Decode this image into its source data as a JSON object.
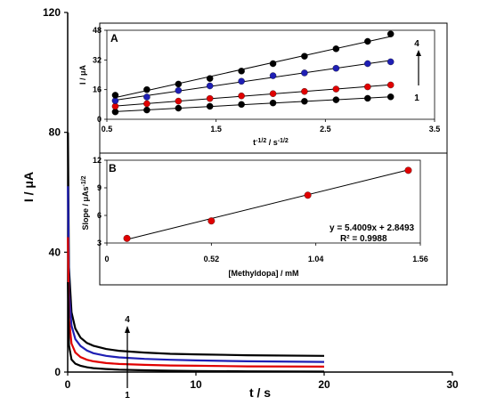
{
  "chart_data": [
    {
      "id": "main",
      "type": "line",
      "xlabel": "t / s",
      "ylabel": "I / μA",
      "xlim": [
        0,
        30
      ],
      "ylim": [
        0,
        120
      ],
      "xticks": [
        "0",
        "10",
        "20",
        "30"
      ],
      "yticks": [
        "0",
        "40",
        "80",
        "120"
      ],
      "series": [
        {
          "color": "#000000",
          "x": [
            0.02,
            0.1,
            0.3,
            0.6,
            1,
            1.5,
            2,
            3,
            4,
            6,
            8,
            10,
            14,
            20
          ],
          "y": [
            80,
            35,
            20,
            14.5,
            11.5,
            9.7,
            8.8,
            7.7,
            7.1,
            6.5,
            6.1,
            5.9,
            5.6,
            5.4
          ]
        },
        {
          "color": "#1f1fb4",
          "x": [
            0.02,
            0.1,
            0.3,
            0.6,
            1,
            1.5,
            2,
            3,
            4,
            6,
            8,
            10,
            14,
            20
          ],
          "y": [
            62,
            27,
            15.5,
            11,
            8.7,
            7.2,
            6.3,
            5.4,
            4.9,
            4.4,
            4.1,
            3.9,
            3.6,
            3.4
          ]
        },
        {
          "color": "#e00000",
          "x": [
            0.02,
            0.1,
            0.3,
            0.6,
            1,
            1.5,
            2,
            3,
            4,
            6,
            8,
            10,
            14,
            20
          ],
          "y": [
            45,
            18,
            9.5,
            6.5,
            5,
            4.1,
            3.6,
            3,
            2.7,
            2.4,
            2.2,
            2.1,
            1.9,
            1.8
          ]
        },
        {
          "color": "#000000",
          "x": [
            0.02,
            0.1,
            0.3,
            0.6,
            1,
            1.5,
            2,
            3,
            4,
            6,
            8,
            10,
            14,
            20
          ],
          "y": [
            30,
            9,
            4.2,
            2.8,
            2.1,
            1.6,
            1.3,
            1,
            0.8,
            0.6,
            0.45,
            0.35,
            0.25,
            0.15
          ]
        }
      ],
      "annotations": {
        "top": "4",
        "bottom": "1"
      }
    },
    {
      "id": "A",
      "panel_label": "A",
      "type": "scatter",
      "xlabel_main": "t",
      "xlabel_sup1": "-1/2",
      "xlabel_mid": " / s",
      "xlabel_sup2": "-1/2",
      "ylabel": "I / μA",
      "xlim": [
        0.5,
        3.5
      ],
      "ylim": [
        0,
        48
      ],
      "xticks": [
        "0.5",
        "1.5",
        "2.5",
        "3.5"
      ],
      "yticks": [
        "0",
        "16",
        "32",
        "48"
      ],
      "x": [
        0.577,
        0.866,
        1.155,
        1.443,
        1.732,
        2.021,
        2.309,
        2.598,
        2.887,
        3.098
      ],
      "series": [
        {
          "color": "#000000",
          "values": [
            4,
            5,
            6,
            7,
            8,
            8.8,
            9.7,
            10.5,
            11.3,
            12.1
          ]
        },
        {
          "color": "#e00000",
          "values": [
            7,
            8.4,
            9.8,
            11.2,
            12.6,
            13.8,
            15,
            16.3,
            17.5,
            18.5
          ]
        },
        {
          "color": "#1f1fb4",
          "values": [
            10,
            12,
            15.5,
            18,
            20.5,
            23.5,
            25,
            27.5,
            30,
            31
          ]
        },
        {
          "color": "#000000",
          "values": [
            13,
            16,
            19,
            22,
            26,
            30,
            34,
            38,
            42,
            46
          ]
        }
      ],
      "annotations": {
        "top": "4",
        "bottom": "1"
      }
    },
    {
      "id": "B",
      "panel_label": "B",
      "type": "scatter",
      "xlabel": "[Methyldopa] / mM",
      "ylabel_main": "Slope / μAs",
      "ylabel_sup": "-1/2",
      "xlim": [
        0,
        1.56
      ],
      "ylim": [
        3,
        12
      ],
      "xticks": [
        "0",
        "0.52",
        "1.04",
        "1.56"
      ],
      "yticks": [
        "3",
        "6",
        "9",
        "12"
      ],
      "x": [
        0.1,
        0.52,
        1.0,
        1.5
      ],
      "values": [
        3.5,
        5.4,
        8.2,
        10.9
      ],
      "point_color": "#e00000",
      "fit": {
        "slope": 5.4009,
        "intercept": 2.8493,
        "equation": "y = 5.4009x + 2.8493",
        "r2": "R² = 0.9988"
      }
    }
  ]
}
